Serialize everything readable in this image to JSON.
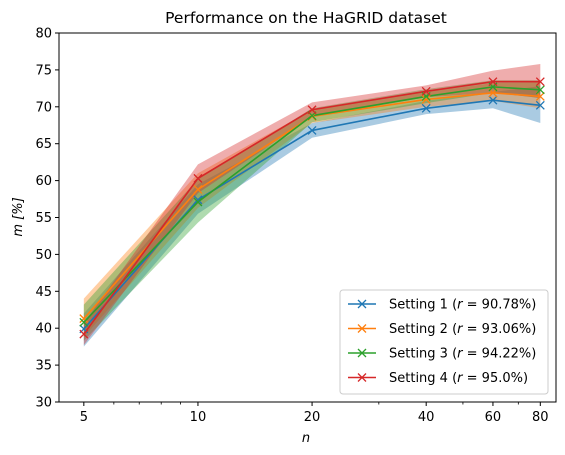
{
  "chart_data": {
    "type": "line",
    "title": "Performance on the HaGRID dataset",
    "xlabel": "n",
    "ylabel": "m [%]",
    "xscale": "log",
    "x": [
      5,
      10,
      20,
      40,
      60,
      80
    ],
    "xticks": [
      "5",
      "10",
      "20",
      "40",
      "60",
      "80"
    ],
    "xlim": [
      4.3,
      88
    ],
    "ylim": [
      30,
      80
    ],
    "yticks": [
      "30",
      "35",
      "40",
      "45",
      "50",
      "55",
      "60",
      "65",
      "70",
      "75",
      "80"
    ],
    "legend_position": "lower-right",
    "marker": "x",
    "series": [
      {
        "name": "Setting 1 (r = 90.78%)",
        "name_prefix": "Setting 1 (",
        "name_var": "r",
        "name_suffix": " = 90.78%)",
        "color": "#1f77b4",
        "values": [
          39.9,
          57.4,
          66.8,
          69.8,
          70.9,
          70.2
        ],
        "lower": [
          37.5,
          55.5,
          65.8,
          69.0,
          69.8,
          67.8
        ],
        "upper": [
          42.0,
          59.5,
          67.8,
          70.8,
          72.0,
          72.8
        ]
      },
      {
        "name": "Setting 2 (r = 93.06%)",
        "name_prefix": "Setting 2 (",
        "name_var": "r",
        "name_suffix": " = 93.06%)",
        "color": "#ff7f0e",
        "values": [
          41.3,
          58.8,
          68.7,
          71.0,
          71.9,
          71.4
        ],
        "lower": [
          38.8,
          56.3,
          67.8,
          70.0,
          70.8,
          69.8
        ],
        "upper": [
          44.0,
          61.0,
          69.6,
          72.0,
          73.2,
          73.3
        ]
      },
      {
        "name": "Setting 3 (r = 94.22%)",
        "name_prefix": "Setting 3 (",
        "name_var": "r",
        "name_suffix": " = 94.22%)",
        "color": "#2ca02c",
        "values": [
          40.8,
          57.1,
          68.8,
          71.4,
          72.7,
          72.3
        ],
        "lower": [
          38.3,
          54.3,
          67.9,
          70.5,
          71.9,
          71.2
        ],
        "upper": [
          43.2,
          60.2,
          69.8,
          72.4,
          73.6,
          73.6
        ]
      },
      {
        "name": "Setting 4 (r = 95.0%)",
        "name_prefix": "Setting 4 (",
        "name_var": "r",
        "name_suffix": " = 95.0%)",
        "color": "#d62728",
        "values": [
          39.2,
          60.3,
          69.6,
          72.1,
          73.4,
          73.4
        ],
        "lower": [
          37.7,
          58.3,
          68.6,
          71.3,
          71.9,
          71.2
        ],
        "upper": [
          40.7,
          62.2,
          70.6,
          72.9,
          74.9,
          75.8
        ]
      }
    ]
  }
}
